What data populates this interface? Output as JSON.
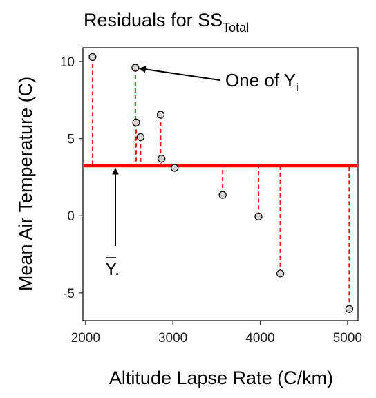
{
  "chart_data": {
    "type": "scatter",
    "title": "Residuals for SS",
    "title_subscript": "Total",
    "xlabel": "Altitude Lapse Rate (C/km)",
    "ylabel": "Mean Air Temperature (C)",
    "xlim": [
      1970,
      5120
    ],
    "ylim": [
      -6.8,
      10.9
    ],
    "x_ticks": [
      2000,
      3000,
      4000,
      5000
    ],
    "y_ticks": [
      -5,
      0,
      5,
      10
    ],
    "mean_y": 3.25,
    "points": [
      {
        "x": 2080,
        "y": 10.3
      },
      {
        "x": 2570,
        "y": 9.6
      },
      {
        "x": 2580,
        "y": 6.05
      },
      {
        "x": 2630,
        "y": 5.1
      },
      {
        "x": 2860,
        "y": 6.55
      },
      {
        "x": 2870,
        "y": 3.7
      },
      {
        "x": 3020,
        "y": 3.1
      },
      {
        "x": 3570,
        "y": 1.35
      },
      {
        "x": 3980,
        "y": -0.05
      },
      {
        "x": 4230,
        "y": -3.75
      },
      {
        "x": 5020,
        "y": -6.05
      }
    ],
    "grid": false,
    "colors": {
      "mean_line": "#ff0000",
      "residual": "#e31a1c",
      "point_fill": "#d3d3d3",
      "point_stroke": "#000000"
    },
    "annotations": {
      "yi_label": "One of Y",
      "yi_subscript": "i",
      "ybar_label": "Y.",
      "yi_point_index": 1
    }
  }
}
